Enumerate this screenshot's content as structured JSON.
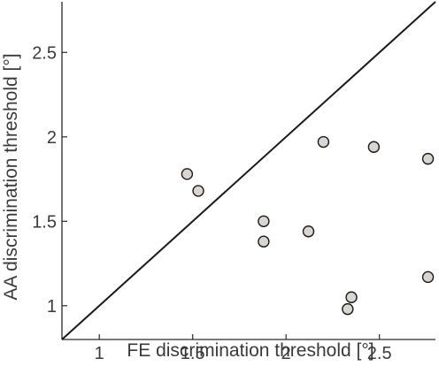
{
  "chart_data": {
    "type": "scatter",
    "title": "",
    "xlabel": "FE discrimination threshold [°]",
    "ylabel": "AA discrimination threshold [°]",
    "xlim": [
      0.8,
      2.8
    ],
    "ylim": [
      0.8,
      2.8
    ],
    "xticks": [
      "1",
      "1.5",
      "2",
      "2.5"
    ],
    "yticks": [
      "1",
      "1.5",
      "2",
      "2.5"
    ],
    "grid": false,
    "reference_line": "y = x",
    "marker_fill": "#d9d6d1",
    "marker_edge": "#1a1a1a",
    "points": [
      {
        "x": 1.47,
        "y": 1.78
      },
      {
        "x": 1.53,
        "y": 1.68
      },
      {
        "x": 1.88,
        "y": 1.5
      },
      {
        "x": 1.88,
        "y": 1.38
      },
      {
        "x": 2.12,
        "y": 1.44
      },
      {
        "x": 2.2,
        "y": 1.97
      },
      {
        "x": 2.47,
        "y": 1.94
      },
      {
        "x": 2.76,
        "y": 1.87
      },
      {
        "x": 2.76,
        "y": 1.17
      },
      {
        "x": 2.35,
        "y": 1.05
      },
      {
        "x": 2.33,
        "y": 0.98
      }
    ]
  }
}
